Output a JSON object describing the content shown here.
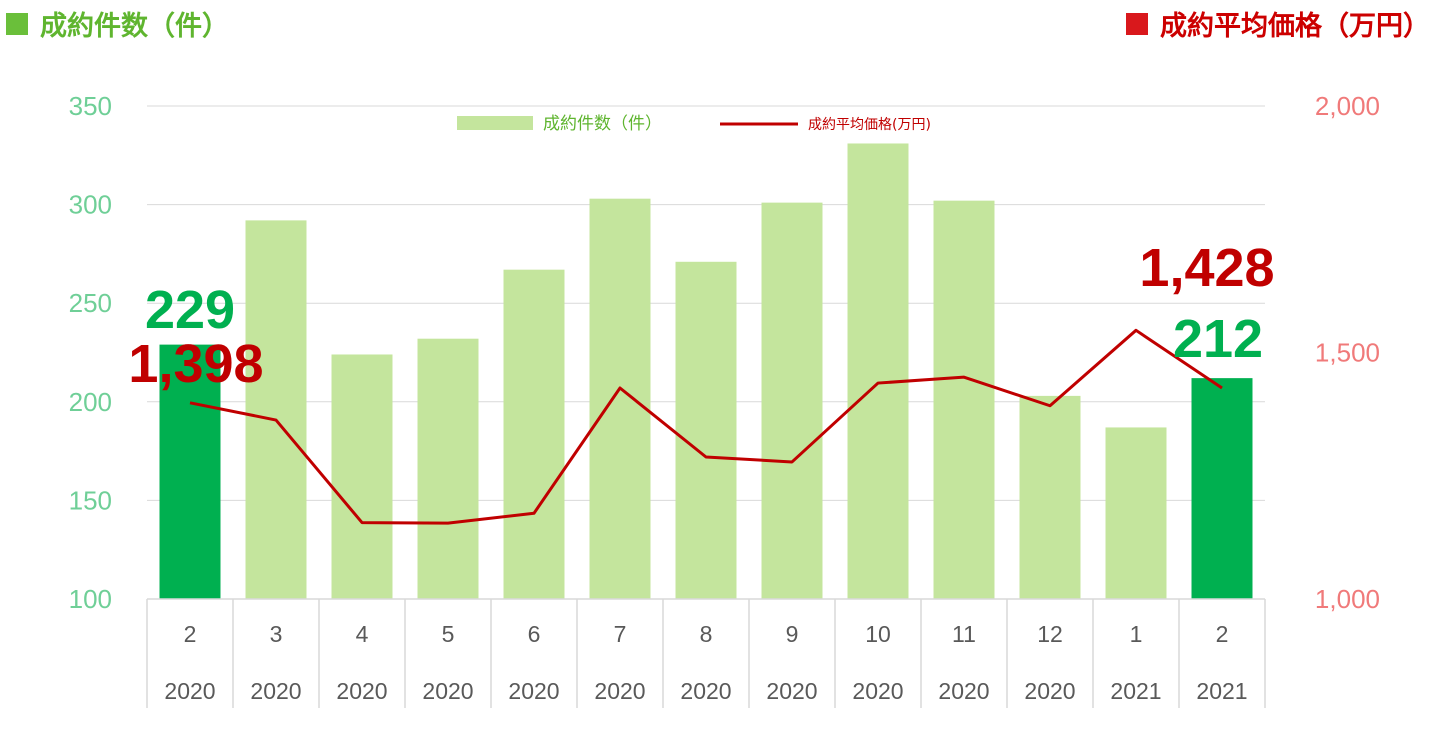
{
  "header": {
    "left_label": "成約件数（件）",
    "right_label": "成約平均価格（万円）",
    "left_color": "#6abf3a",
    "right_color": "#d9181c"
  },
  "legend": {
    "bar_label": "成約件数（件）",
    "line_label": "成約平均価格(万円)"
  },
  "chart_data": {
    "type": "bar",
    "categories": [
      "2",
      "3",
      "4",
      "5",
      "6",
      "7",
      "8",
      "9",
      "10",
      "11",
      "12",
      "1",
      "2"
    ],
    "years": [
      "2020",
      "2020",
      "2020",
      "2020",
      "2020",
      "2020",
      "2020",
      "2020",
      "2020",
      "2020",
      "2020",
      "2021",
      "2021"
    ],
    "series": [
      {
        "name": "成約件数（件）",
        "type": "bar",
        "axis": "left",
        "values": [
          229,
          292,
          224,
          232,
          267,
          303,
          271,
          301,
          331,
          302,
          203,
          187,
          212
        ],
        "color": "#c4e59d",
        "highlight_color": "#00b050",
        "highlight_indices": [
          0,
          12
        ]
      },
      {
        "name": "成約平均価格(万円)",
        "type": "line",
        "axis": "right",
        "values": [
          1398,
          1363,
          1155,
          1154,
          1174,
          1428,
          1288,
          1278,
          1438,
          1450,
          1392,
          1545,
          1428
        ],
        "color": "#c00000"
      }
    ],
    "y_left": {
      "min": 100,
      "max": 350,
      "ticks": [
        "100",
        "150",
        "200",
        "250",
        "300",
        "350"
      ]
    },
    "y_right": {
      "min": 1000,
      "max": 2000,
      "ticks": [
        "1,000",
        "1,500",
        "2,000"
      ]
    },
    "grid": true,
    "legend_position": "top-center",
    "annotations": [
      {
        "text": "229",
        "series": "bar",
        "index": 0
      },
      {
        "text": "1,398",
        "series": "line",
        "index": 0
      },
      {
        "text": "212",
        "series": "bar",
        "index": 12
      },
      {
        "text": "1,428",
        "series": "line",
        "index": 12
      }
    ]
  }
}
